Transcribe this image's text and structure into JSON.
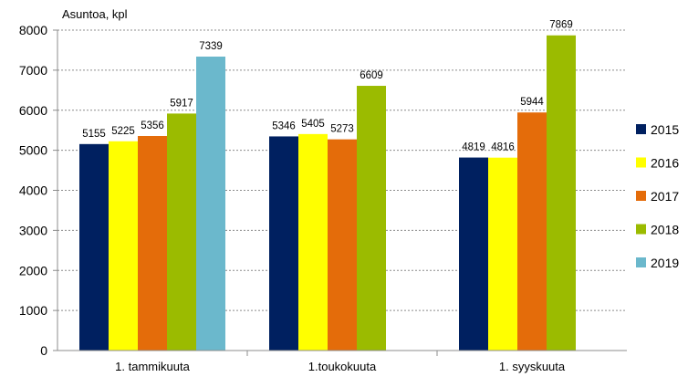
{
  "chart_data": {
    "type": "bar",
    "ylabel": "Asuntoa, kpl",
    "ylim": [
      0,
      8000
    ],
    "yticks": [
      0,
      1000,
      2000,
      3000,
      4000,
      5000,
      6000,
      7000,
      8000
    ],
    "categories": [
      "1. tammikuuta",
      "1.toukokuuta",
      "1. syyskuuta"
    ],
    "series": [
      {
        "name": "2015",
        "color": "#002060",
        "values": [
          5155,
          5346,
          4819
        ]
      },
      {
        "name": "2016",
        "color": "#ffff00",
        "values": [
          5225,
          5405,
          4816
        ]
      },
      {
        "name": "2017",
        "color": "#e46c0a",
        "values": [
          5356,
          5273,
          5944
        ]
      },
      {
        "name": "2018",
        "color": "#9bbb00",
        "values": [
          5917,
          6609,
          7869
        ]
      },
      {
        "name": "2019",
        "color": "#6bb8cc",
        "values": [
          7339,
          null,
          null
        ]
      }
    ],
    "grid": true,
    "legend_position": "right",
    "data_labels": true
  }
}
